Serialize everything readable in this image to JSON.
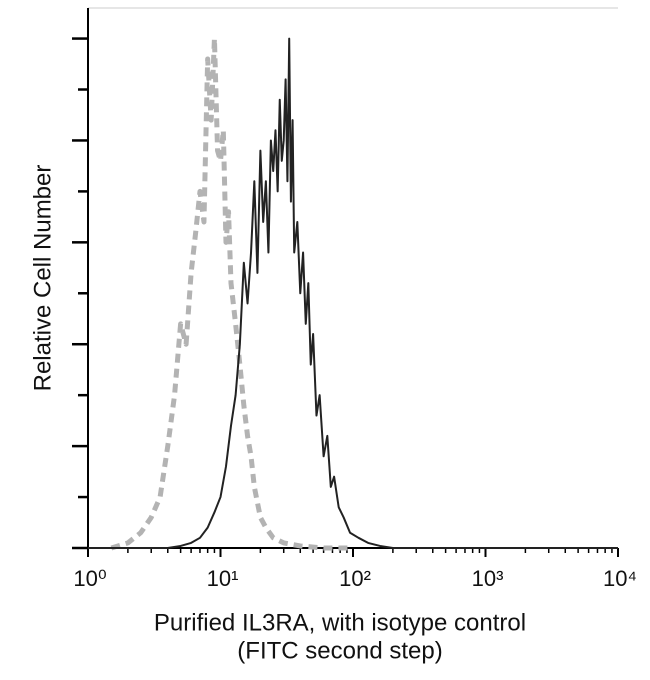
{
  "chart_data": {
    "type": "line",
    "y_label": "Relative Cell Number",
    "x_label": [
      "Purified IL3RA, with isotype control",
      "(FITC second step)"
    ],
    "xscale": "log",
    "xlim": [
      1,
      10000
    ],
    "xticks": [
      {
        "value": 1,
        "label": "10⁰"
      },
      {
        "value": 10,
        "label": "10¹"
      },
      {
        "value": 100,
        "label": "10²"
      },
      {
        "value": 1000,
        "label": "10³"
      },
      {
        "value": 10000,
        "label": "10⁴"
      }
    ],
    "xminorticks": [
      2,
      3,
      4,
      5,
      6,
      7,
      8,
      9,
      20,
      30,
      40,
      50,
      60,
      70,
      80,
      90,
      200,
      300,
      400,
      500,
      600,
      700,
      800,
      900,
      2000,
      3000,
      4000,
      5000,
      6000,
      7000,
      8000,
      9000
    ],
    "ylim": [
      0,
      5.3
    ],
    "yticks": [
      0,
      0.5,
      1,
      1.5,
      2,
      2.5,
      3,
      3.5,
      4,
      4.5,
      5
    ],
    "series": [
      {
        "color": "#b3b3b3",
        "dashed": true,
        "x": [
          1.5,
          2,
          2.5,
          3,
          3.5,
          4,
          4.5,
          5,
          5.5,
          6,
          6.5,
          7,
          7.5,
          8,
          8.5,
          9,
          9.5,
          10,
          10.5,
          11,
          11.5,
          12,
          13,
          14,
          15,
          16,
          17,
          18,
          20,
          22,
          25,
          30,
          40,
          60,
          100
        ],
        "values": [
          0,
          0.05,
          0.15,
          0.3,
          0.5,
          1.0,
          1.5,
          2.2,
          2.0,
          2.7,
          3.1,
          3.5,
          3.2,
          4.8,
          4.2,
          5.0,
          3.9,
          3.8,
          4.1,
          3.0,
          3.3,
          2.6,
          2.2,
          1.8,
          1.4,
          1.1,
          0.9,
          0.6,
          0.3,
          0.2,
          0.1,
          0.05,
          0.02,
          0,
          0
        ]
      },
      {
        "color": "#222222",
        "dashed": false,
        "x": [
          1,
          4,
          5,
          6,
          7,
          8,
          9,
          10,
          11,
          12,
          13,
          14,
          15,
          16,
          17,
          18,
          19,
          20,
          21,
          22,
          23,
          24,
          25,
          26,
          27,
          28,
          29,
          30,
          31,
          32,
          33,
          34,
          35,
          36,
          38,
          40,
          42,
          44,
          46,
          48,
          50,
          53,
          56,
          60,
          64,
          68,
          72,
          78,
          85,
          95,
          110,
          130,
          160,
          200,
          1000,
          10000
        ],
        "values": [
          0,
          0,
          0.02,
          0.05,
          0.1,
          0.2,
          0.35,
          0.5,
          0.8,
          1.2,
          1.5,
          2.0,
          2.8,
          2.4,
          2.9,
          3.6,
          2.7,
          3.9,
          3.2,
          3.6,
          2.9,
          4.0,
          3.7,
          4.1,
          3.5,
          4.4,
          3.8,
          4.0,
          4.6,
          3.6,
          5.0,
          3.4,
          4.2,
          2.9,
          3.2,
          2.5,
          2.9,
          2.2,
          2.6,
          1.8,
          2.1,
          1.3,
          1.5,
          0.9,
          1.1,
          0.6,
          0.7,
          0.4,
          0.3,
          0.15,
          0.1,
          0.05,
          0.02,
          0,
          0,
          0
        ]
      }
    ]
  }
}
